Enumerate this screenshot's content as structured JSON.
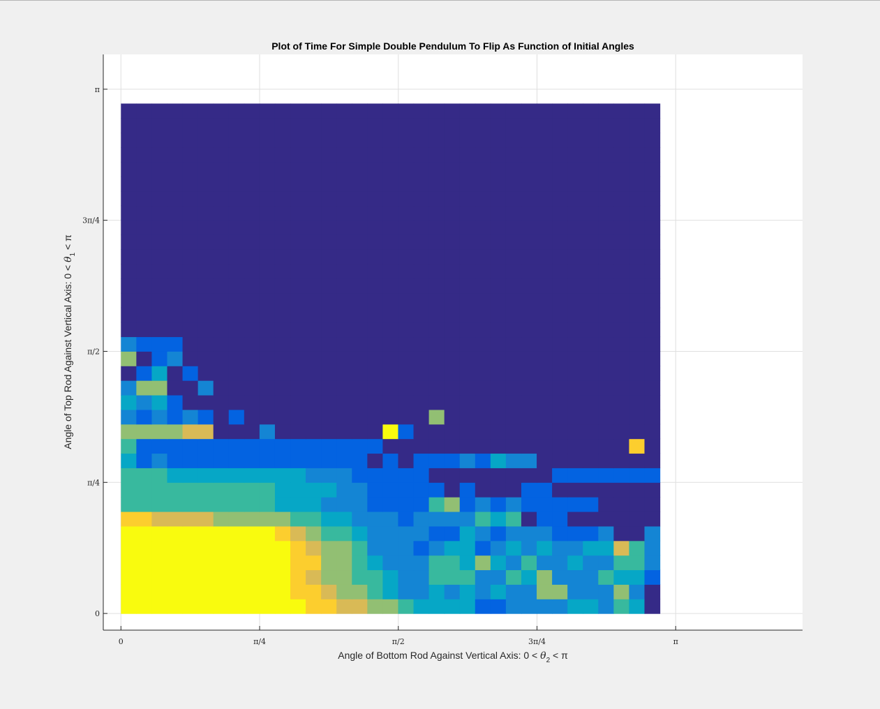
{
  "chart_data": {
    "type": "heatmap",
    "title": "Plot of Time For Simple Double Pendulum To Flip As Function of Initial Angles",
    "xlabel": {
      "prefix": "Angle of Bottom Rod Against Vertical Axis: 0 < ",
      "symbol": "θ",
      "subscript": "2",
      "suffix": " < π"
    },
    "ylabel": {
      "prefix": "Angle of Top Rod Against Vertical Axis: 0 < ",
      "symbol": "θ",
      "subscript": "1",
      "suffix": " < π"
    },
    "xlim": [
      -0.1,
      3.86
    ],
    "ylim": [
      -0.1,
      3.35
    ],
    "x_ticks": [
      {
        "value": 0,
        "label": "0"
      },
      {
        "value": 0.7854,
        "label": "π/4"
      },
      {
        "value": 1.5708,
        "label": "π/2"
      },
      {
        "value": 2.3562,
        "label": "3π/4"
      },
      {
        "value": 3.1416,
        "label": "π"
      }
    ],
    "y_ticks": [
      {
        "value": 0,
        "label": "0"
      },
      {
        "value": 0.7854,
        "label": "π/4"
      },
      {
        "value": 1.5708,
        "label": "π/2"
      },
      {
        "value": 2.3562,
        "label": "3π/4"
      },
      {
        "value": 3.1416,
        "label": "π"
      }
    ],
    "grid": true,
    "colormap": "parula",
    "colormap_stops": [
      "#352a87",
      "#0363e1",
      "#1485d4",
      "#06a7c6",
      "#38b99e",
      "#92bf73",
      "#d9ba56",
      "#fcce2e",
      "#f9fb0e"
    ],
    "grid_cells": {
      "x_start": 0,
      "y_start": 0,
      "cell_width": 0.0872,
      "cell_height": 0.0873,
      "columns": 35,
      "rows": 35,
      "values_note": "rows listed from bottom (row 0) to top; scalar 0..8 on colormap; rows 26-34 all 0",
      "rows_data": [
        "88888888888877665543333112222332430",
        "88888888888776554322323232255222520",
        "88888888888765544322444224352224331",
        "88888888888775543222443532422322442",
        "88888888888765542221233123232233642",
        "88888888887654432222113212221112002",
        "77666655555443322212222434011000000",
        "44444444443332221111451212111110000",
        "44444444443333221111101000110000000",
        "44433333333322211111000000001111111",
        "31211111111111110101112132200000000",
        "41111111111111111000000000000000070",
        "55556600020000000810000000000000000",
        "21212101000000000000500000000000000",
        "32310000000000000000000000000000000",
        "25500200000000000000000000000000000",
        "01301000000000000000000000000000000",
        "50120000000000000000000000000000000",
        "21110000000000000000000000000000000",
        "00000000000000000000000000000000000",
        "00000000000000000000000000000000000",
        "00000000000000000000000000000000000",
        "00000000000000000000000000000000000",
        "00000000000000000000000000000000000",
        "00000000000000000000000000000000000",
        "00000000000000000000000000000000000"
      ]
    }
  }
}
